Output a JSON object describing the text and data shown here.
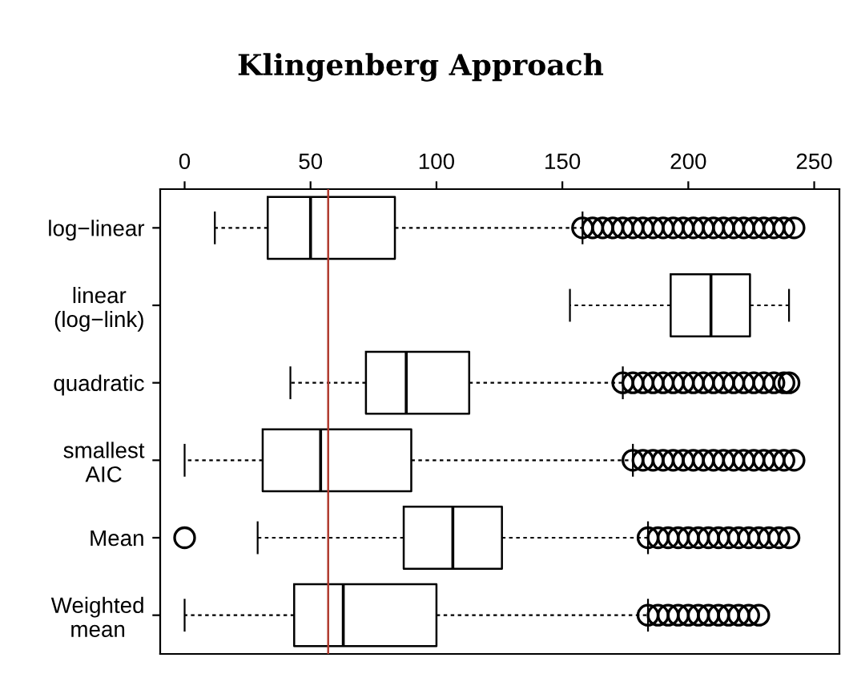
{
  "chart_data": {
    "type": "box",
    "title": "Klingenberg Approach",
    "orientation": "horizontal",
    "categories": [
      "log−linear",
      "linear\n(log−link)",
      "quadratic",
      "smallest\nAIC",
      "Mean",
      "Weighted\nmean"
    ],
    "boxes": [
      {
        "low": 12,
        "q1": 33,
        "median": 50,
        "q3": 83.5,
        "high": 158,
        "outliers": [
          158,
          162,
          166,
          170,
          174,
          178,
          182,
          186,
          190,
          194,
          198,
          202,
          206,
          210,
          214,
          218,
          222,
          226,
          230,
          234,
          238,
          242
        ]
      },
      {
        "low": 153,
        "q1": 193,
        "median": 209,
        "q3": 224.5,
        "high": 240
      },
      {
        "low": 42,
        "q1": 72,
        "median": 88,
        "q3": 113,
        "high": 174,
        "outliers": [
          174,
          178,
          182,
          186,
          190,
          194,
          198,
          202,
          206,
          210,
          214,
          218,
          222,
          226,
          230,
          234,
          238,
          240
        ]
      },
      {
        "low": 0,
        "q1": 31,
        "median": 54,
        "q3": 90,
        "high": 178,
        "outliers": [
          178,
          182,
          186,
          190,
          194,
          198,
          202,
          206,
          210,
          214,
          218,
          222,
          226,
          230,
          234,
          238,
          242
        ]
      },
      {
        "low": 29,
        "q1": 87,
        "median": 106.5,
        "q3": 126,
        "high": 184,
        "outliers": [
          0,
          184,
          188,
          192,
          196,
          200,
          204,
          208,
          212,
          216,
          220,
          224,
          228,
          232,
          236,
          240
        ]
      },
      {
        "low": 0,
        "q1": 43.5,
        "median": 63,
        "q3": 100,
        "high": 184,
        "outliers": [
          184,
          188,
          192,
          196,
          200,
          204,
          208,
          212,
          216,
          220,
          224,
          228
        ]
      }
    ],
    "xlim": [
      -9.7,
      260
    ],
    "xticks": [
      0,
      50,
      100,
      150,
      200,
      250
    ],
    "ref_lines": [
      {
        "axis": "x",
        "value": 57,
        "color": "#b03a2e"
      }
    ],
    "grid": false
  }
}
